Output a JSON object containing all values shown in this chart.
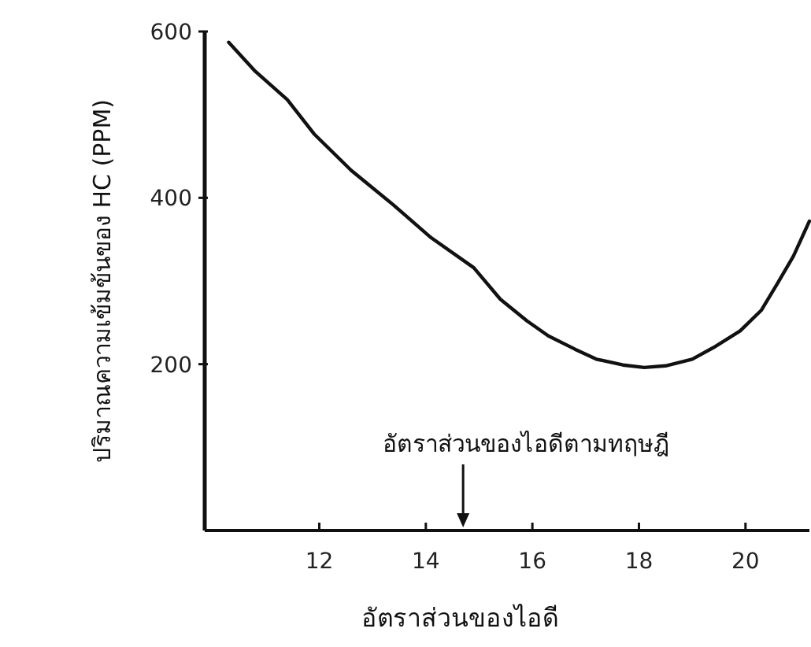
{
  "chart_data": {
    "type": "line",
    "xlabel": "อัตราส่วนของไอดี",
    "ylabel": "ปริมาณความเข้มข้นของ HC (PPM)",
    "x": [
      10.3,
      10.8,
      11.4,
      11.9,
      12.6,
      13.4,
      14.1,
      14.9,
      15.4,
      15.9,
      16.3,
      16.8,
      17.2,
      17.7,
      18.1,
      18.5,
      19.0,
      19.4,
      19.9,
      20.3,
      20.6,
      20.9,
      21.2
    ],
    "series": [
      {
        "color": "#111111",
        "values": [
          587,
          552,
          518,
          477,
          433,
          391,
          352,
          316,
          278,
          252,
          234,
          218,
          206,
          199,
          196,
          198,
          206,
          220,
          240,
          265,
          297,
          330,
          372
        ]
      }
    ],
    "xlim": [
      9.85,
      21.2
    ],
    "ylim": [
      0,
      600
    ],
    "xticks": [
      12,
      14,
      16,
      18,
      20
    ],
    "yticks": [
      200,
      400,
      600
    ],
    "ref_lines": [
      {
        "axis": "x",
        "value": 14.7,
        "label": "อัตราส่วนของไอดีตามทฤษฎี"
      }
    ]
  }
}
